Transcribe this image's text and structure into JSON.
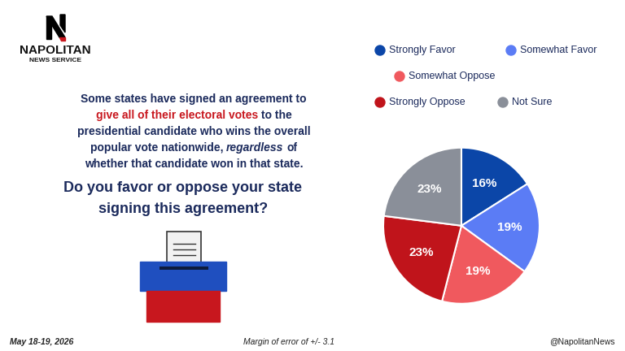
{
  "header": {
    "brand": "NAPOLITAN",
    "brand_sub": "NEWS SERVICE"
  },
  "intro": [
    [
      {
        "text": "Some states have signed an agreement to"
      }
    ],
    [
      {
        "text": "give all of their electoral votes",
        "color": "#c8171e"
      },
      {
        "text": " to the"
      }
    ],
    [
      {
        "text": "presidential candidate who wins the overall"
      }
    ],
    [
      {
        "text": "popular vote nationwide, "
      },
      {
        "text": "regardless",
        "style": "italic"
      },
      {
        "text": " of"
      }
    ],
    [
      {
        "text": "whether that candidate won in that state."
      }
    ]
  ],
  "question": [
    "Do you favor or oppose your state",
    "signing this agreement?"
  ],
  "chart_data": {
    "type": "pie",
    "categories": [
      "Strongly Favor",
      "Somewhat Favor",
      "Somewhat Oppose",
      "Strongly Oppose",
      "Not Sure"
    ],
    "values": [
      16,
      19,
      19,
      23,
      23
    ],
    "value_labels": [
      "16%",
      "19%",
      "19%",
      "23%",
      "23%"
    ],
    "colors": [
      "#0b46a8",
      "#5b7cf5",
      "#f0595e",
      "#c0141b",
      "#8a8f99"
    ],
    "data_labels": true
  },
  "footer": {
    "date": "May 18-19, 2026",
    "margin": "Margin of error of +/- 3.1",
    "handle": "@NapolitanNews"
  }
}
